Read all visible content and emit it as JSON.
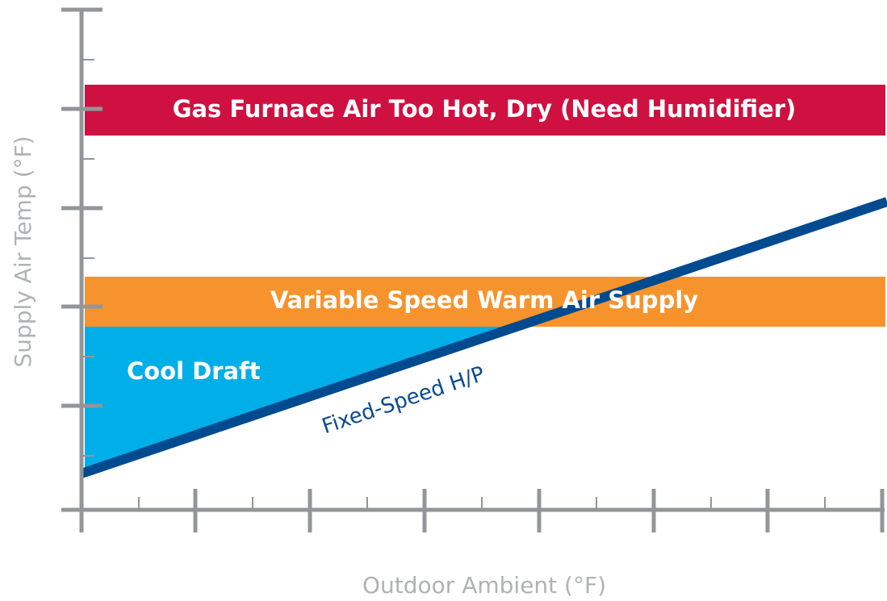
{
  "axes": {
    "x_label": "Outdoor Ambient (°F)",
    "y_label": "Supply Air Temp (°F)"
  },
  "bands": [
    {
      "label": "Gas Furnace Air Too Hot, Dry (Need Humidifier)"
    },
    {
      "label": "Variable Speed Warm Air Supply"
    }
  ],
  "region": {
    "label": "Cool Draft"
  },
  "line": {
    "label": "Fixed-Speed H/P"
  }
}
